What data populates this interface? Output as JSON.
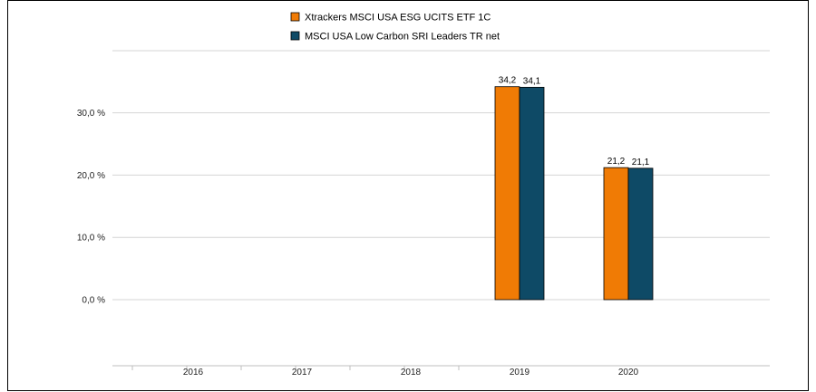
{
  "chart_data": {
    "type": "bar",
    "categories": [
      "2016",
      "2017",
      "2018",
      "2019",
      "2020"
    ],
    "series": [
      {
        "name": "Xtrackers MSCI USA ESG UCITS ETF  1C",
        "color": "#f07b05",
        "values": [
          null,
          null,
          null,
          34.2,
          21.2
        ],
        "labels": [
          "",
          "",
          "",
          "34,2",
          "21,2"
        ]
      },
      {
        "name": "MSCI USA Low Carbon SRI Leaders TR net",
        "color": "#0e4a66",
        "values": [
          null,
          null,
          null,
          34.1,
          21.1
        ],
        "labels": [
          "",
          "",
          "",
          "34,1",
          "21,1"
        ]
      }
    ],
    "yticks": [
      {
        "value": 0,
        "label": "0,0 %"
      },
      {
        "value": 10,
        "label": "10,0 %"
      },
      {
        "value": 20,
        "label": "20,0 %"
      },
      {
        "value": 30,
        "label": "30,0 %"
      }
    ],
    "ylim": [
      0,
      40
    ],
    "grid": true,
    "legend": "top-center",
    "title": "",
    "xlabel": "",
    "ylabel": ""
  }
}
